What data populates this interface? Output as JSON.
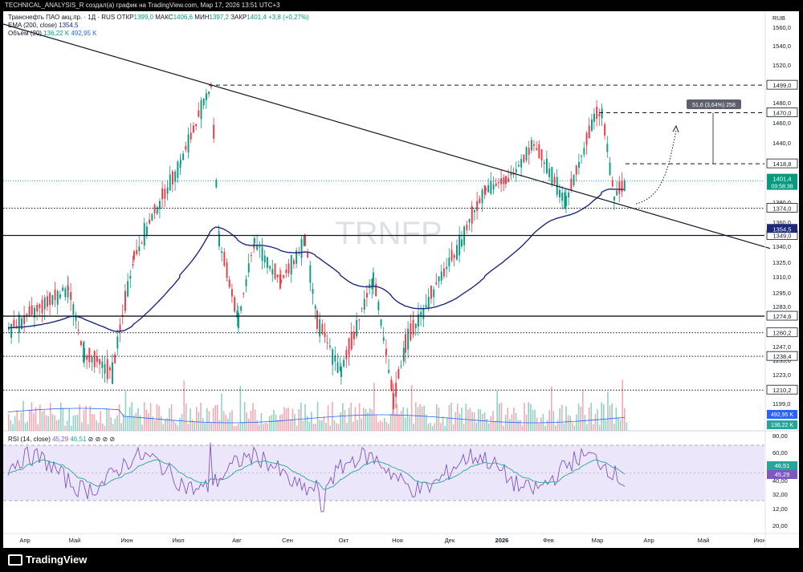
{
  "header": {
    "attribution": "TECHNICAL_ANALYSIS_R создал(а) график на TradingView.com, Мар 17, 2026 13:51 UTC+3"
  },
  "legend": {
    "symbol": "Транснефть ПАО акц.пр. · 1Д · RUS",
    "open_label": "ОТКР",
    "open": "1399,0",
    "high_label": "МАКС",
    "high": "1406,6",
    "low_label": "МИН",
    "low": "1397,2",
    "close_label": "ЗАКР",
    "close": "1401,4",
    "change": "+3,8 (+0,27%)",
    "ema_label": "EMA (200, close)",
    "ema_value": "1354,5",
    "volume_label": "Объём (20)",
    "volume_value1": "136,22 K",
    "volume_value2": "492,95 K",
    "rsi_label": "RSI (14, close)",
    "rsi_value1": "45,29",
    "rsi_value2": "46,51"
  },
  "watermark": "TRNFP",
  "brand": "TradingView",
  "colors": {
    "up": "#089981",
    "down": "#f23645",
    "ema": "#1e2a78",
    "rsi": "#7e57c2",
    "rsi_ma": "#26a69a",
    "rsi_band": "#ece6fb"
  },
  "chart_data": {
    "type": "candlestick",
    "currency": "RUB",
    "price_ticks": [
      "1560,0",
      "1540,0",
      "1520,0",
      "1500,0",
      "1480,0",
      "1460,0",
      "1440,0",
      "1380,0",
      "1360,0",
      "1340,0",
      "1325,0",
      "1310,0",
      "1295,0",
      "1283,0",
      "1260,0",
      "1247,0",
      "1235,0",
      "1223,0",
      "1199,0"
    ],
    "x_labels": [
      "Апр",
      "Май",
      "Июн",
      "Июл",
      "Авг",
      "Сен",
      "Окт",
      "Ноя",
      "Дек",
      "2026",
      "Фев",
      "Мар",
      "Апр",
      "Май",
      "Июн"
    ],
    "levels": [
      {
        "value": 1499.0,
        "label": "1499,0",
        "style": "dashed"
      },
      {
        "value": 1470.0,
        "label": "1470,0",
        "style": "dashed"
      },
      {
        "value": 1418.8,
        "label": "1418,8",
        "style": "dashed"
      },
      {
        "value": 1374.0,
        "label": "1374,0",
        "style": "dotted"
      },
      {
        "value": 1349.0,
        "label": "1349,0",
        "style": "solid"
      },
      {
        "value": 1274.6,
        "label": "1274,6",
        "style": "solid"
      },
      {
        "value": 1260.2,
        "label": "1260,2",
        "style": "dotted"
      },
      {
        "value": 1238.4,
        "label": "1238,4",
        "style": "dotted"
      },
      {
        "value": 1210.2,
        "label": "1210,2",
        "style": "dotted"
      }
    ],
    "last_price": {
      "value": "1401,4",
      "countdown": "09:58:38"
    },
    "ema_last": "1354,5",
    "volume_badges": [
      "492,95 K",
      "136,22 K"
    ],
    "measure_label": "51,6 (3,64%) 258",
    "rsi": {
      "ticks": [
        "80,00",
        "60,00",
        "40,00",
        "32,00",
        "20,00",
        "12,00",
        "20,00"
      ],
      "upper": 70,
      "lower": 30,
      "last_rsi": "45,29",
      "last_ma": "46,51"
    },
    "swing_path": [
      [
        "Апр",
        1262
      ],
      [
        "Май",
        1300
      ],
      [
        "Май",
        1240
      ],
      [
        "Июн",
        1225
      ],
      [
        "Июн",
        1330
      ],
      [
        "Июл",
        1420
      ],
      [
        "Июл",
        1499
      ],
      [
        "Июл",
        1345
      ],
      [
        "Авг",
        1270
      ],
      [
        "Авг",
        1345
      ],
      [
        "Сен",
        1305
      ],
      [
        "Сен",
        1345
      ],
      [
        "Сен",
        1270
      ],
      [
        "Окт",
        1225
      ],
      [
        "Окт",
        1310
      ],
      [
        "Ноя",
        1200
      ],
      [
        "Ноя",
        1250
      ],
      [
        "Дек",
        1345
      ],
      [
        "Дек",
        1395
      ],
      [
        "2026",
        1400
      ],
      [
        "2026",
        1440
      ],
      [
        "Фев",
        1380
      ],
      [
        "Фев",
        1465
      ],
      [
        "Мар",
        1470
      ],
      [
        "Мар",
        1385
      ],
      [
        "Мар",
        1401
      ]
    ]
  }
}
